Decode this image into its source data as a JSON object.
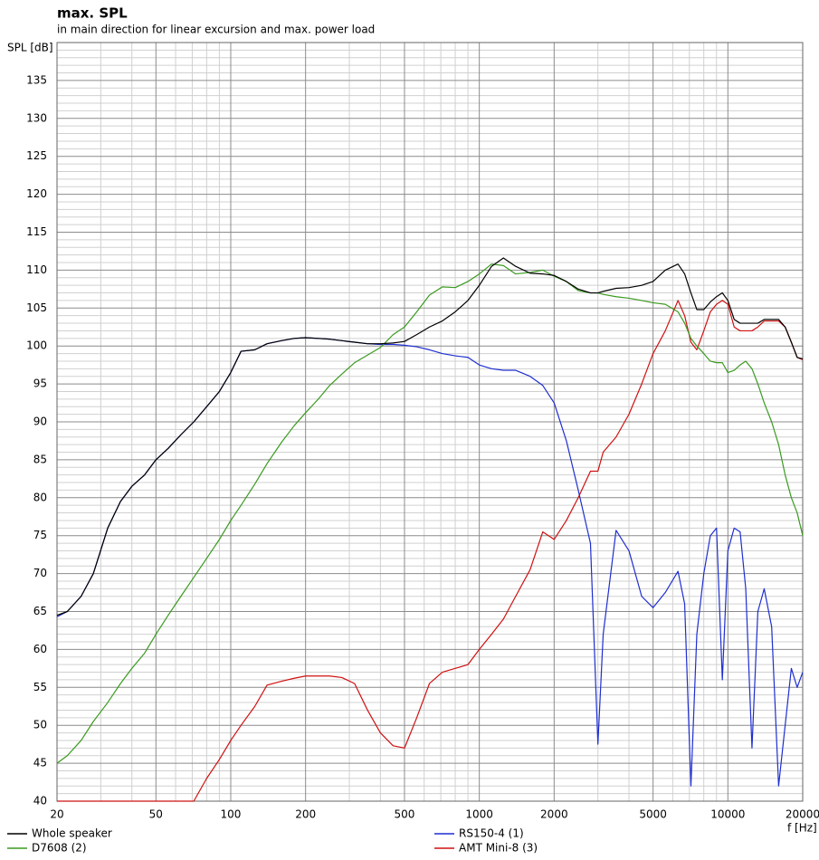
{
  "chart_data": {
    "type": "line",
    "title": "max. SPL",
    "subtitle": "in main direction for linear excursion and max. power load",
    "y_label": "SPL [dB]",
    "x_label": "f [Hz]",
    "xscale": "log",
    "grid": true,
    "minor_grid": true,
    "legend": "bottom",
    "xlim": [
      20,
      20000
    ],
    "xticks": [
      20,
      50,
      100,
      200,
      500,
      1000,
      2000,
      5000,
      10000,
      20000
    ],
    "ylim": [
      40,
      140
    ],
    "yticks": [
      40,
      45,
      50,
      55,
      60,
      65,
      70,
      75,
      80,
      85,
      90,
      95,
      100,
      105,
      110,
      115,
      120,
      125,
      130,
      135
    ],
    "x": [
      20,
      22,
      25,
      28,
      32,
      36,
      40,
      45,
      50,
      56,
      63,
      71,
      80,
      90,
      100,
      110,
      125,
      140,
      160,
      180,
      200,
      225,
      250,
      280,
      315,
      355,
      400,
      450,
      500,
      560,
      630,
      710,
      800,
      900,
      1000,
      1120,
      1250,
      1400,
      1600,
      1800,
      2000,
      2240,
      2500,
      2800,
      3000,
      3150,
      3550,
      4000,
      4500,
      5000,
      5600,
      6300,
      6700,
      7100,
      7500,
      8000,
      8500,
      9000,
      9500,
      10000,
      10600,
      11200,
      11800,
      12500,
      13200,
      14000,
      15000,
      16000,
      17000,
      18000,
      19000,
      20000
    ],
    "series": [
      {
        "name": "Whole speaker",
        "color": "#000000",
        "values": [
          64.5,
          65,
          67,
          70,
          76,
          79.5,
          81.5,
          83,
          85,
          86.5,
          88.3,
          90,
          92,
          94,
          96.5,
          99.3,
          99.5,
          100.3,
          100.7,
          101,
          101.1,
          101,
          100.9,
          100.7,
          100.5,
          100.3,
          100.3,
          100.4,
          100.6,
          101.5,
          102.5,
          103.3,
          104.5,
          106,
          108,
          110.5,
          111.6,
          110.5,
          109.6,
          109.5,
          109.3,
          108.5,
          107.5,
          107,
          107,
          107.2,
          107.6,
          107.7,
          108,
          108.5,
          110,
          110.8,
          109.5,
          107,
          104.8,
          104.8,
          105.8,
          106.5,
          107,
          106,
          103.5,
          103,
          103,
          103,
          103,
          103.5,
          103.5,
          103.5,
          102.5,
          100.5,
          98.5,
          98.3
        ]
      },
      {
        "name": "D7608 (2)",
        "color": "#3a9a1f",
        "values": [
          45,
          46,
          48,
          50.5,
          53,
          55.5,
          57.5,
          59.5,
          62,
          64.5,
          67,
          69.5,
          72,
          74.5,
          77,
          79,
          81.8,
          84.5,
          87.3,
          89.5,
          91.2,
          93,
          94.8,
          96.3,
          97.8,
          98.8,
          99.8,
          101.5,
          102.5,
          104.5,
          106.7,
          107.8,
          107.7,
          108.5,
          109.5,
          110.8,
          110.6,
          109.5,
          109.7,
          110,
          109.2,
          108.5,
          107.3,
          107,
          107,
          106.8,
          106.5,
          106.3,
          106,
          105.7,
          105.5,
          104.5,
          103,
          101,
          100,
          99,
          98,
          97.8,
          97.8,
          96.5,
          96.8,
          97.5,
          98,
          97,
          95,
          92.5,
          90,
          87,
          83,
          80,
          78,
          75
        ]
      },
      {
        "name": "RS150-4 (1)",
        "color": "#1f2fd0",
        "values": [
          64.3,
          65,
          67,
          70,
          76,
          79.5,
          81.5,
          83,
          85,
          86.5,
          88.3,
          90,
          92,
          94,
          96.5,
          99.3,
          99.5,
          100.3,
          100.7,
          101,
          101.1,
          101,
          100.9,
          100.7,
          100.5,
          100.3,
          100.2,
          100.2,
          100.1,
          99.9,
          99.5,
          99,
          98.7,
          98.5,
          97.5,
          97,
          96.8,
          96.8,
          96,
          94.8,
          92.5,
          87.5,
          81,
          74,
          47.5,
          62,
          75.7,
          73,
          67,
          65.5,
          67.5,
          70.3,
          66,
          42,
          62,
          70,
          75,
          76,
          56,
          73,
          76,
          75.5,
          68,
          47,
          65,
          68,
          63,
          42,
          50,
          57.5,
          55,
          57
        ]
      },
      {
        "name": "AMT Mini-8 (3)",
        "color": "#d01010",
        "values": [
          40,
          40,
          40,
          40,
          40,
          40,
          40,
          40,
          40,
          40,
          40,
          40,
          43,
          45.5,
          48,
          50,
          52.5,
          55.3,
          55.8,
          56.2,
          56.5,
          56.5,
          56.5,
          56.3,
          55.5,
          52,
          49,
          47.3,
          47,
          51,
          55.5,
          57,
          57.5,
          58,
          60,
          62,
          64,
          67,
          70.5,
          75.5,
          74.5,
          77,
          80,
          83.5,
          83.5,
          86,
          88,
          91,
          95,
          99,
          102,
          106,
          104,
          100.5,
          99.5,
          102,
          104.5,
          105.5,
          106,
          105.5,
          102.5,
          102,
          102,
          102,
          102.5,
          103.3,
          103.3,
          103.3,
          102.5,
          100.5,
          98.5,
          98.2
        ]
      }
    ]
  }
}
